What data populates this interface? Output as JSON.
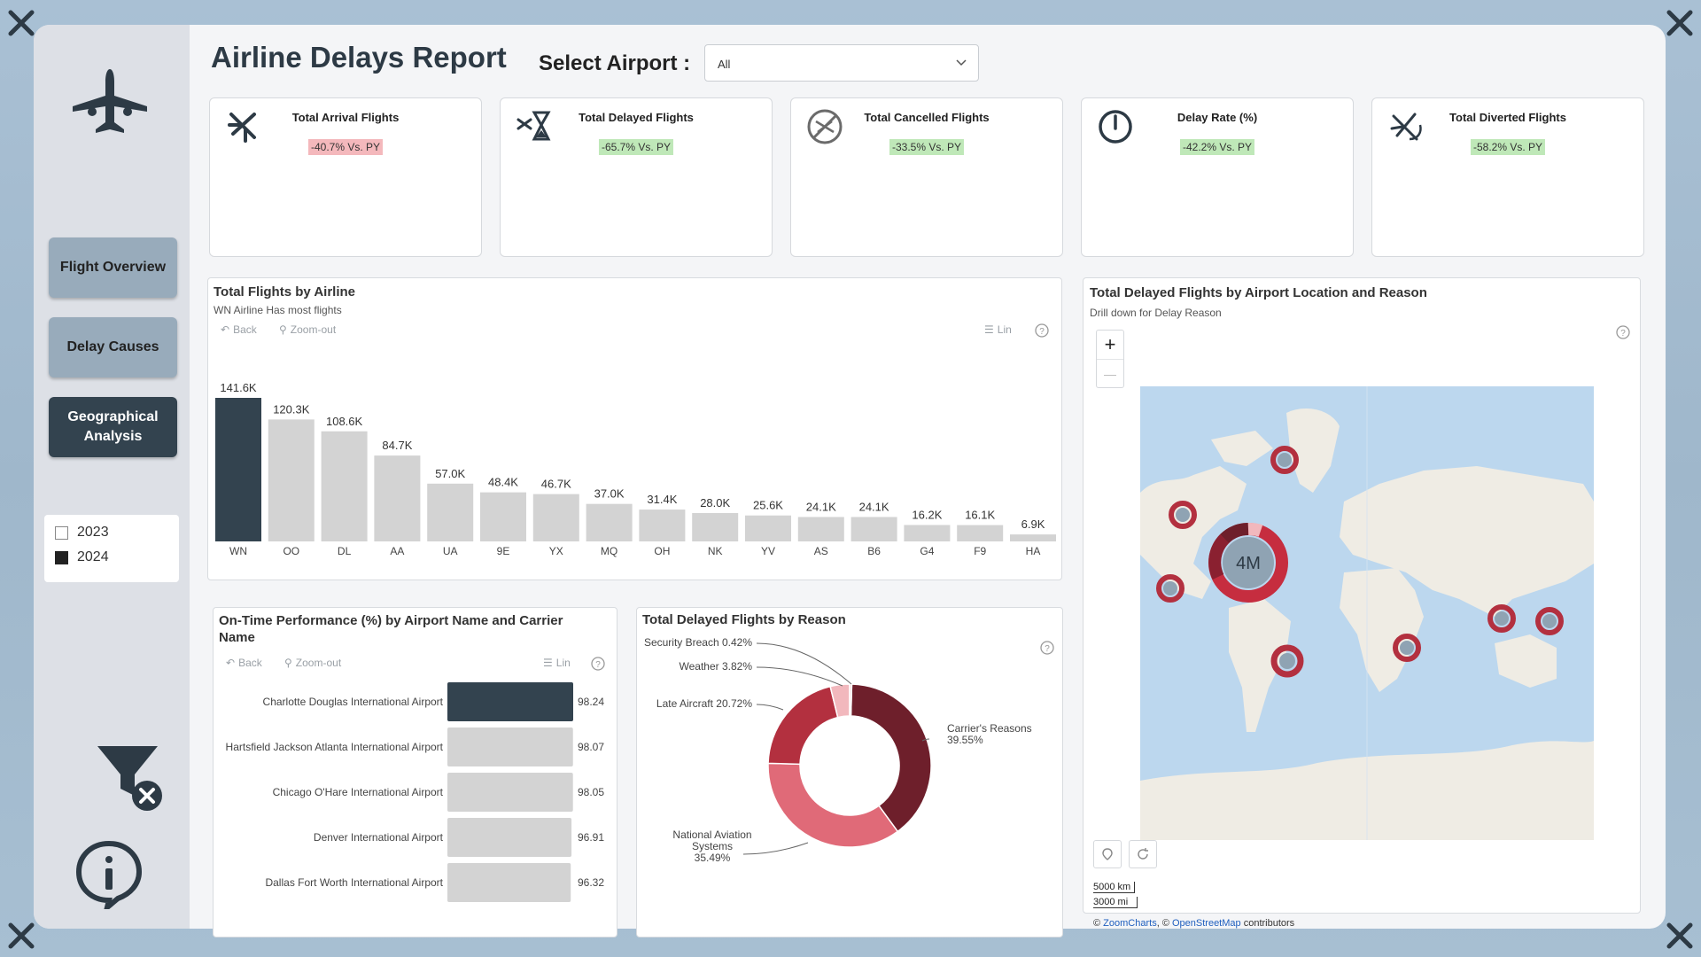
{
  "header": {
    "title": "Airline Delays Report",
    "select_label": "Select Airport :",
    "select_value": "All"
  },
  "sidebar": {
    "nav": [
      {
        "label": "Flight Overview",
        "active": false
      },
      {
        "label": "Delay Causes",
        "active": false
      },
      {
        "label": "Geographical Analysis",
        "active": true
      }
    ],
    "years": [
      {
        "label": "2023",
        "checked": false
      },
      {
        "label": "2024",
        "checked": true
      }
    ]
  },
  "cards": [
    {
      "title": "Total Arrival Flights",
      "badge": "-40.7% Vs. PY",
      "tone": "red",
      "icon": "plane-arrival-icon"
    },
    {
      "title": "Total Delayed Flights",
      "badge": "-65.7% Vs. PY",
      "tone": "green",
      "icon": "plane-hourglass-icon"
    },
    {
      "title": "Total Cancelled Flights",
      "badge": "-33.5% Vs. PY",
      "tone": "green",
      "icon": "plane-cancelled-icon"
    },
    {
      "title": "Delay Rate (%)",
      "badge": "-42.2% Vs. PY",
      "tone": "green",
      "icon": "clock-icon"
    },
    {
      "title": "Total Diverted Flights",
      "badge": "-58.2% Vs. PY",
      "tone": "green",
      "icon": "plane-diverted-icon"
    }
  ],
  "airline_panel": {
    "title": "Total Flights by Airline",
    "subtitle": "WN Airline Has most flights",
    "back": "Back",
    "zoom_out": "Zoom-out",
    "lin": "Lin"
  },
  "otp_panel": {
    "title": "On-Time Performance (%) by Airport Name and Carrier Name",
    "back": "Back",
    "zoom_out": "Zoom-out",
    "lin": "Lin"
  },
  "reason_panel": {
    "title": "Total Delayed Flights by Reason"
  },
  "map_panel": {
    "title": "Total Delayed Flights by Airport Location and Reason",
    "subtitle": "Drill down for Delay Reason",
    "zoom_in": "+",
    "zoom_out": "—",
    "big_cluster_label": "4M",
    "scale_km": "5000 km",
    "scale_mi": "3000 mi",
    "attribution_prefix": "©",
    "attribution_zc": "ZoomCharts",
    "attribution_mid": ", ©",
    "attribution_osm": "OpenStreetMap",
    "attribution_suffix": "contributors"
  },
  "colors": {
    "dark_bar": "#33434f",
    "light_bar": "#d3d3d3",
    "donut": [
      "#6e1f2b",
      "#e06a78",
      "#b3303f",
      "#f2b8bd",
      "#f7d4d7"
    ],
    "map_water": "#bcd7ee",
    "map_land": "#efece4"
  },
  "chart_data": [
    {
      "type": "bar",
      "title": "Total Flights by Airline",
      "categories": [
        "WN",
        "OO",
        "DL",
        "AA",
        "UA",
        "9E",
        "YX",
        "MQ",
        "OH",
        "NK",
        "YV",
        "AS",
        "B6",
        "G4",
        "F9",
        "HA"
      ],
      "values": [
        141600,
        120300,
        108600,
        84700,
        57000,
        48400,
        46700,
        37000,
        31400,
        28000,
        25600,
        24100,
        24100,
        16200,
        16100,
        6900
      ],
      "value_labels": [
        "141.6K",
        "120.3K",
        "108.6K",
        "84.7K",
        "57.0K",
        "48.4K",
        "46.7K",
        "37.0K",
        "31.4K",
        "28.0K",
        "25.6K",
        "24.1K",
        "24.1K",
        "16.2K",
        "16.1K",
        "6.9K"
      ],
      "ylim": [
        0,
        150000
      ]
    },
    {
      "type": "bar",
      "orientation": "horizontal",
      "title": "On-Time Performance (%) by Airport Name and Carrier Name",
      "categories": [
        "Charlotte Douglas International Airport",
        "Hartsfield Jackson Atlanta International Airport",
        "Chicago O'Hare International Airport",
        "Denver International Airport",
        "Dallas Fort Worth International Airport"
      ],
      "values": [
        98.24,
        98.07,
        98.05,
        96.91,
        96.32
      ],
      "value_labels": [
        "98.24",
        "98.07",
        "98.05",
        "96.91",
        "96.32"
      ]
    },
    {
      "type": "pie",
      "title": "Total Delayed Flights by Reason",
      "categories": [
        "Carrier's Reasons",
        "National Aviation Systems",
        "Late Aircraft",
        "Weather",
        "Security Breach"
      ],
      "values": [
        39.55,
        35.49,
        20.72,
        3.82,
        0.42
      ],
      "labels": [
        "Carrier's Reasons 39.55%",
        "National Aviation Systems 35.49%",
        "Late Aircraft 20.72%",
        "Weather 3.82%",
        "Security Breach 0.42%"
      ]
    }
  ]
}
